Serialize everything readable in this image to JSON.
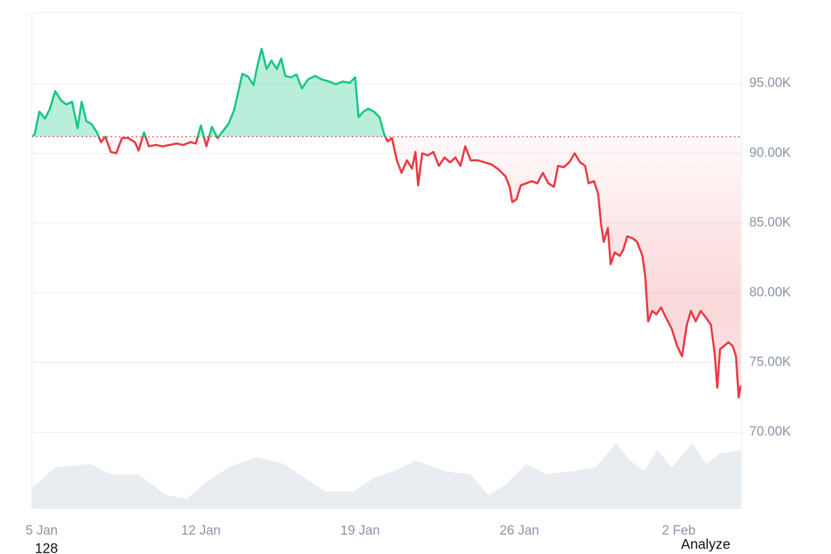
{
  "chart_data": {
    "type": "line",
    "x": [
      4.57,
      4.69,
      4.9,
      5.15,
      5.36,
      5.6,
      5.85,
      6.09,
      6.34,
      6.58,
      6.76,
      6.97,
      7.19,
      7.43,
      7.61,
      7.8,
      8.04,
      8.28,
      8.53,
      8.8,
      9.1,
      9.26,
      9.5,
      9.71,
      10.02,
      10.32,
      10.63,
      10.93,
      11.23,
      11.54,
      11.78,
      12.0,
      12.24,
      12.48,
      12.73,
      12.97,
      13.21,
      13.46,
      13.67,
      13.82,
      14.07,
      14.31,
      14.49,
      14.67,
      14.89,
      15.1,
      15.34,
      15.53,
      15.71,
      15.95,
      16.2,
      16.44,
      16.71,
      17.02,
      17.32,
      17.63,
      17.93,
      18.23,
      18.54,
      18.78,
      18.93,
      19.15,
      19.36,
      19.6,
      19.85,
      20.06,
      20.21,
      20.4,
      20.61,
      20.82,
      21.06,
      21.28,
      21.43,
      21.55,
      21.73,
      21.98,
      22.22,
      22.46,
      22.71,
      22.95,
      23.19,
      23.41,
      23.62,
      23.86,
      24.17,
      24.47,
      24.78,
      25.08,
      25.39,
      25.57,
      25.69,
      25.87,
      26.06,
      26.3,
      26.54,
      26.79,
      27.03,
      27.27,
      27.52,
      27.7,
      27.94,
      28.19,
      28.43,
      28.67,
      28.89,
      29.04,
      29.28,
      29.46,
      29.59,
      29.71,
      29.89,
      30.01,
      30.19,
      30.41,
      30.56,
      30.74,
      30.99,
      31.17,
      31.41,
      31.53,
      31.66,
      31.84,
      32.02,
      32.23,
      32.45,
      32.69,
      32.93,
      33.15,
      33.36,
      33.54,
      33.75,
      33.97,
      34.21,
      34.42,
      34.58,
      34.7,
      34.82,
      35.0,
      35.19,
      35.37,
      35.52,
      35.64,
      35.73
    ],
    "values": [
      91190,
      91340,
      92980,
      92500,
      93200,
      94460,
      93800,
      93500,
      93700,
      91800,
      93700,
      92300,
      92100,
      91500,
      90800,
      91200,
      90100,
      90000,
      91100,
      91100,
      90800,
      90200,
      91500,
      90500,
      90600,
      90500,
      90600,
      90700,
      90600,
      90800,
      90700,
      92000,
      90500,
      91900,
      91100,
      91600,
      92100,
      93100,
      94600,
      95700,
      95500,
      94900,
      96300,
      97500,
      96050,
      96650,
      96050,
      96800,
      95550,
      95450,
      95650,
      94650,
      95300,
      95550,
      95300,
      95150,
      94950,
      95150,
      95050,
      95450,
      92600,
      93000,
      93200,
      93000,
      92600,
      91350,
      90850,
      91100,
      89500,
      88600,
      89500,
      88900,
      90100,
      87700,
      90000,
      89850,
      90100,
      89100,
      89700,
      89350,
      89700,
      89100,
      90500,
      89500,
      89500,
      89350,
      89200,
      88850,
      88350,
      87600,
      86500,
      86700,
      87700,
      87850,
      88000,
      87850,
      88600,
      87850,
      87600,
      89100,
      89000,
      89350,
      90000,
      89350,
      89100,
      87850,
      88000,
      87100,
      84900,
      83650,
      84650,
      82050,
      82900,
      82650,
      83050,
      84050,
      83900,
      83650,
      82650,
      81200,
      77950,
      78700,
      78450,
      78950,
      78200,
      77450,
      76200,
      75450,
      77700,
      78700,
      77950,
      78700,
      78200,
      77700,
      75700,
      73200,
      75950,
      76200,
      76450,
      76200,
      75450,
      72500,
      73350
    ],
    "up_color": "#16c784",
    "down_color": "#ea3943",
    "xlim": [
      4.57,
      35.77
    ],
    "xticks": [
      {
        "value": 5,
        "label": "5 Jan"
      },
      {
        "value": 12,
        "label": "12 Jan"
      },
      {
        "value": 19,
        "label": "19 Jan"
      },
      {
        "value": 26,
        "label": "26 Jan"
      },
      {
        "value": 33,
        "label": "2 Feb"
      }
    ],
    "ylim": [
      64500,
      100100
    ],
    "yticks": [
      {
        "value": 70000,
        "label": "70.00K"
      },
      {
        "value": 75000,
        "label": "75.00K"
      },
      {
        "value": 80000,
        "label": "80.00K"
      },
      {
        "value": 85000,
        "label": "85.00K"
      },
      {
        "value": 90000,
        "label": "90.00K"
      },
      {
        "value": 95000,
        "label": "95.00K"
      }
    ],
    "grid": true,
    "volume": {
      "color": "#e9edf1",
      "x": [
        4.57,
        5.6,
        7.13,
        8.04,
        9.26,
        10.47,
        11.39,
        12.3,
        13.21,
        14.43,
        15.65,
        16.56,
        17.47,
        18.69,
        19.6,
        20.52,
        21.43,
        22.65,
        23.86,
        24.63,
        25.39,
        26.3,
        27.21,
        28.43,
        29.34,
        30.25,
        30.86,
        31.47,
        32.08,
        32.69,
        33.6,
        34.21,
        34.82,
        35.73
      ],
      "values": [
        30,
        60,
        65,
        50,
        50,
        20,
        15,
        40,
        60,
        75,
        65,
        45,
        25,
        25,
        45,
        55,
        70,
        55,
        50,
        20,
        35,
        65,
        50,
        55,
        60,
        95,
        70,
        55,
        85,
        60,
        95,
        65,
        80,
        85
      ]
    },
    "y2lim": [
      0,
      100
    ]
  },
  "ui": {
    "counter": "128",
    "button": "Analyze"
  }
}
